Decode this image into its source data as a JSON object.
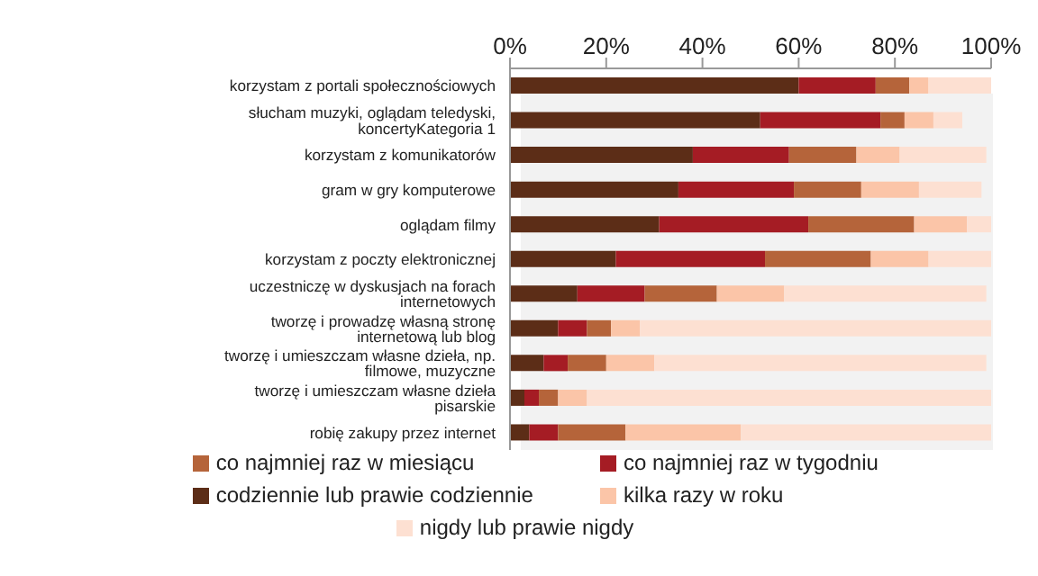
{
  "chart_data": {
    "type": "bar",
    "orientation": "horizontal",
    "stacked": true,
    "categories": [
      "korzystam z portali społecznościowych",
      "słucham muzyki, oglądam teledyski, koncertyKategoria 1",
      "korzystam z komunikatorów",
      "gram w gry komputerowe",
      "oglądam filmy",
      "korzystam z poczty elektronicznej",
      "uczestniczę w dyskusjach na forach internetowych",
      "tworzę i prowadzę własną stronę internetową lub blog",
      "tworzę i umieszczam własne dzieła, np. filmowe, muzyczne",
      "tworzę i umieszczam własne dzieła pisarskie",
      "robię zakupy przez internet"
    ],
    "series": [
      {
        "name": "codziennie lub prawie codziennie",
        "color": "#5c2d17",
        "values": [
          60,
          52,
          38,
          35,
          31,
          22,
          14,
          10,
          7,
          3,
          4
        ]
      },
      {
        "name": "co najmniej raz w tygodniu",
        "color": "#a51c24",
        "values": [
          16,
          25,
          20,
          24,
          31,
          31,
          14,
          6,
          5,
          3,
          6
        ]
      },
      {
        "name": "co najmniej raz w miesiącu",
        "color": "#b5643a",
        "values": [
          7,
          5,
          14,
          14,
          22,
          22,
          15,
          5,
          8,
          4,
          14
        ]
      },
      {
        "name": "kilka razy w roku",
        "color": "#fbc5a8",
        "values": [
          4,
          6,
          9,
          12,
          11,
          12,
          14,
          6,
          10,
          6,
          24
        ]
      },
      {
        "name": "nigdy lub prawie nigdy",
        "color": "#fde0d2",
        "values": [
          13,
          6,
          18,
          13,
          5,
          13,
          42,
          73,
          69,
          84,
          52
        ]
      }
    ],
    "xlim": [
      0,
      100
    ],
    "xticks": [
      {
        "value": 0,
        "label": "0%"
      },
      {
        "value": 20,
        "label": "20%"
      },
      {
        "value": 40,
        "label": "40%"
      },
      {
        "value": 60,
        "label": "60%"
      },
      {
        "value": 80,
        "label": "80%"
      },
      {
        "value": 100,
        "label": "100%"
      }
    ],
    "legend": "bottom"
  }
}
